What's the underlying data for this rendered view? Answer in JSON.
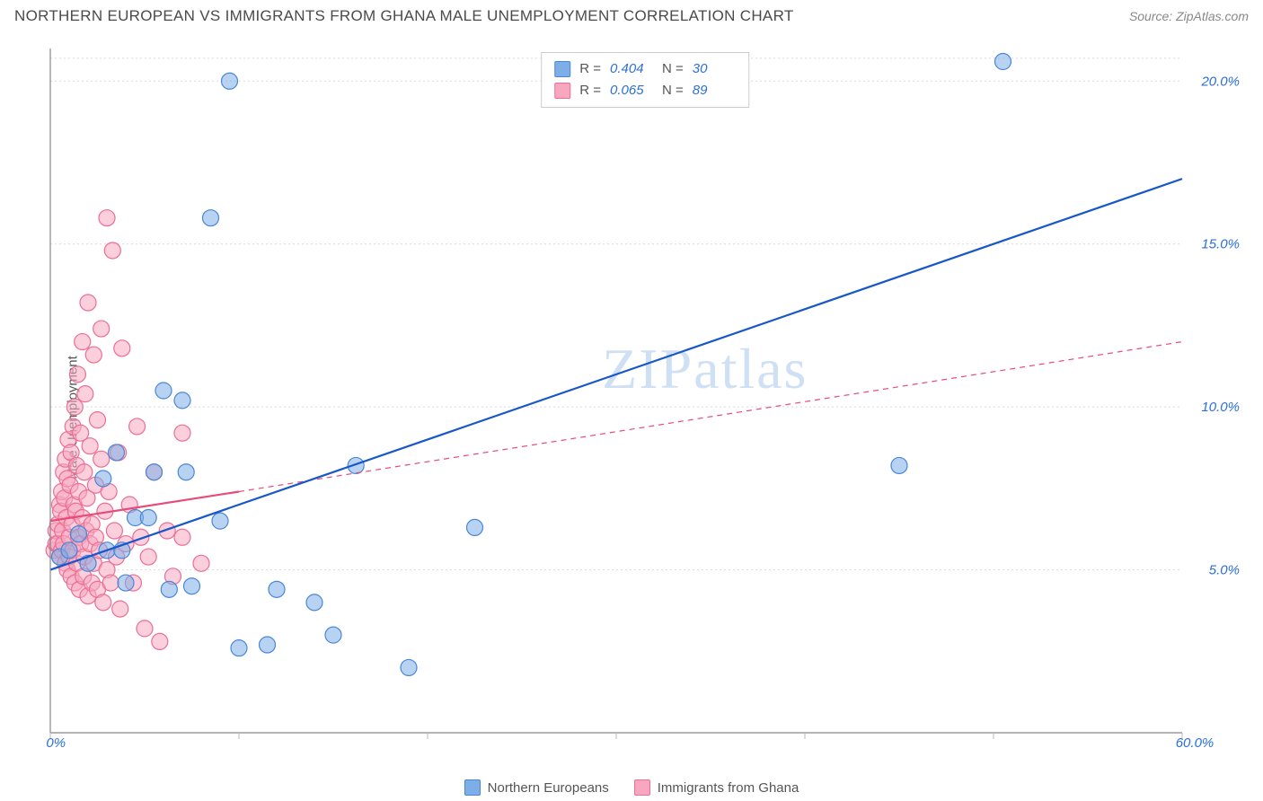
{
  "title": "NORTHERN EUROPEAN VS IMMIGRANTS FROM GHANA MALE UNEMPLOYMENT CORRELATION CHART",
  "source": "Source: ZipAtlas.com",
  "ylabel": "Male Unemployment",
  "watermark": "ZIPatlas",
  "chart": {
    "type": "scatter",
    "xlim": [
      0,
      60
    ],
    "ylim": [
      0,
      21
    ],
    "xticks": [
      0,
      10,
      20,
      30,
      40,
      50,
      60
    ],
    "xtick_labels": {
      "0": "0.0%",
      "60": "60.0%"
    },
    "yticks": [
      5,
      10,
      15,
      20
    ],
    "ytick_labels": [
      "5.0%",
      "10.0%",
      "15.0%",
      "20.0%"
    ],
    "grid_color": "#d9d9d9",
    "background_color": "#ffffff",
    "marker_radius": 9,
    "marker_opacity": 0.55,
    "series": [
      {
        "name": "Northern Europeans",
        "color": "#7eaee8",
        "stroke": "#4a86d8",
        "R": "0.404",
        "N": "30",
        "trend": {
          "x1": 0,
          "y1": 5.0,
          "x2": 60,
          "y2": 17.0,
          "color": "#1857c9",
          "width": 2.2,
          "dash": ""
        },
        "points": [
          [
            0.5,
            5.4
          ],
          [
            1.0,
            5.6
          ],
          [
            1.5,
            6.1
          ],
          [
            2.0,
            5.2
          ],
          [
            2.8,
            7.8
          ],
          [
            3.0,
            5.6
          ],
          [
            3.5,
            8.6
          ],
          [
            3.8,
            5.6
          ],
          [
            4.0,
            4.6
          ],
          [
            4.5,
            6.6
          ],
          [
            5.2,
            6.6
          ],
          [
            5.5,
            8.0
          ],
          [
            6.0,
            10.5
          ],
          [
            6.3,
            4.4
          ],
          [
            7.0,
            10.2
          ],
          [
            7.2,
            8.0
          ],
          [
            7.5,
            4.5
          ],
          [
            8.5,
            15.8
          ],
          [
            9.0,
            6.5
          ],
          [
            9.5,
            20.0
          ],
          [
            10.0,
            2.6
          ],
          [
            11.5,
            2.7
          ],
          [
            12.0,
            4.4
          ],
          [
            14.0,
            4.0
          ],
          [
            15.0,
            3.0
          ],
          [
            16.2,
            8.2
          ],
          [
            19.0,
            2.0
          ],
          [
            22.5,
            6.3
          ],
          [
            45.0,
            8.2
          ],
          [
            50.5,
            20.6
          ]
        ]
      },
      {
        "name": "Immigrants from Ghana",
        "color": "#f7a8bf",
        "stroke": "#ec6e94",
        "R": "0.065",
        "N": "89",
        "trend_solid": {
          "x1": 0,
          "y1": 6.5,
          "x2": 10,
          "y2": 7.4,
          "color": "#e84a7a",
          "width": 2.2
        },
        "trend_dash": {
          "x1": 10,
          "y1": 7.4,
          "x2": 60,
          "y2": 12.0,
          "color": "#e84a7a",
          "width": 1.2,
          "dash": "6,5"
        },
        "points": [
          [
            0.2,
            5.6
          ],
          [
            0.3,
            5.8
          ],
          [
            0.3,
            6.2
          ],
          [
            0.4,
            5.8
          ],
          [
            0.4,
            6.4
          ],
          [
            0.5,
            5.4
          ],
          [
            0.5,
            7.0
          ],
          [
            0.55,
            6.8
          ],
          [
            0.6,
            5.6
          ],
          [
            0.6,
            7.4
          ],
          [
            0.65,
            6.2
          ],
          [
            0.7,
            5.8
          ],
          [
            0.7,
            8.0
          ],
          [
            0.75,
            7.2
          ],
          [
            0.8,
            5.2
          ],
          [
            0.8,
            8.4
          ],
          [
            0.85,
            6.6
          ],
          [
            0.9,
            7.8
          ],
          [
            0.9,
            5.0
          ],
          [
            0.95,
            9.0
          ],
          [
            1.0,
            6.0
          ],
          [
            1.0,
            5.4
          ],
          [
            1.05,
            7.6
          ],
          [
            1.1,
            8.6
          ],
          [
            1.1,
            4.8
          ],
          [
            1.15,
            6.4
          ],
          [
            1.2,
            9.4
          ],
          [
            1.2,
            5.6
          ],
          [
            1.25,
            7.0
          ],
          [
            1.3,
            10.0
          ],
          [
            1.3,
            4.6
          ],
          [
            1.35,
            6.8
          ],
          [
            1.4,
            8.2
          ],
          [
            1.4,
            5.2
          ],
          [
            1.45,
            11.0
          ],
          [
            1.5,
            6.0
          ],
          [
            1.5,
            7.4
          ],
          [
            1.55,
            4.4
          ],
          [
            1.6,
            9.2
          ],
          [
            1.6,
            5.8
          ],
          [
            1.7,
            12.0
          ],
          [
            1.7,
            6.6
          ],
          [
            1.75,
            4.8
          ],
          [
            1.8,
            8.0
          ],
          [
            1.8,
            5.4
          ],
          [
            1.85,
            10.4
          ],
          [
            1.9,
            6.2
          ],
          [
            1.95,
            7.2
          ],
          [
            2.0,
            4.2
          ],
          [
            2.0,
            13.2
          ],
          [
            2.1,
            5.8
          ],
          [
            2.1,
            8.8
          ],
          [
            2.2,
            6.4
          ],
          [
            2.2,
            4.6
          ],
          [
            2.3,
            11.6
          ],
          [
            2.3,
            5.2
          ],
          [
            2.4,
            7.6
          ],
          [
            2.4,
            6.0
          ],
          [
            2.5,
            4.4
          ],
          [
            2.5,
            9.6
          ],
          [
            2.6,
            5.6
          ],
          [
            2.7,
            8.4
          ],
          [
            2.7,
            12.4
          ],
          [
            2.8,
            4.0
          ],
          [
            2.9,
            6.8
          ],
          [
            3.0,
            5.0
          ],
          [
            3.0,
            15.8
          ],
          [
            3.1,
            7.4
          ],
          [
            3.2,
            4.6
          ],
          [
            3.3,
            14.8
          ],
          [
            3.4,
            6.2
          ],
          [
            3.5,
            5.4
          ],
          [
            3.6,
            8.6
          ],
          [
            3.7,
            3.8
          ],
          [
            3.8,
            11.8
          ],
          [
            4.0,
            5.8
          ],
          [
            4.2,
            7.0
          ],
          [
            4.4,
            4.6
          ],
          [
            4.6,
            9.4
          ],
          [
            4.8,
            6.0
          ],
          [
            5.0,
            3.2
          ],
          [
            5.2,
            5.4
          ],
          [
            5.5,
            8.0
          ],
          [
            5.8,
            2.8
          ],
          [
            6.2,
            6.2
          ],
          [
            6.5,
            4.8
          ],
          [
            7.0,
            9.2
          ],
          [
            7.0,
            6.0
          ],
          [
            8.0,
            5.2
          ]
        ]
      }
    ]
  },
  "legend_bottom": [
    {
      "label": "Northern Europeans",
      "fill": "#7eaee8",
      "stroke": "#4a86d8"
    },
    {
      "label": "Immigrants from Ghana",
      "fill": "#f7a8bf",
      "stroke": "#ec6e94"
    }
  ]
}
